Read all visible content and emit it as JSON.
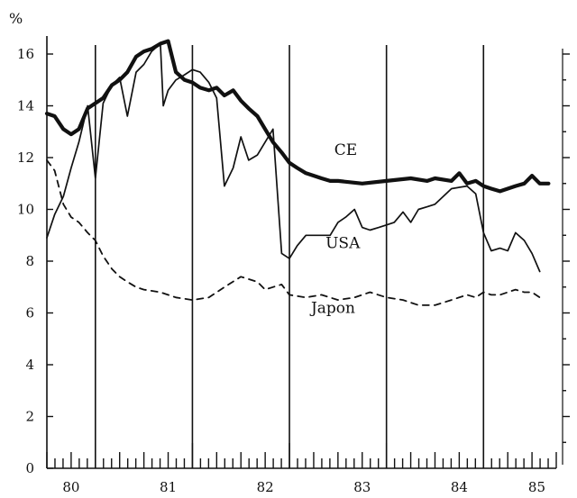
{
  "chart_data": {
    "type": "line",
    "y_unit": "%",
    "ylim": [
      0,
      16
    ],
    "xlim": [
      1980.0,
      1985.25
    ],
    "y_ticks": [
      0,
      2,
      4,
      6,
      8,
      10,
      12,
      14,
      16
    ],
    "x_tick_labels": [
      {
        "label": "80",
        "year": 1980.25
      },
      {
        "label": "81",
        "year": 1981.25
      },
      {
        "label": "82",
        "year": 1982.25
      },
      {
        "label": "83",
        "year": 1983.25
      },
      {
        "label": "84",
        "year": 1984.25
      },
      {
        "label": "85",
        "year": 1985.05
      }
    ],
    "year_dividers": [
      1980.5,
      1981.5,
      1982.5,
      1983.5,
      1984.5
    ],
    "grid": false,
    "series": [
      {
        "name": "CE",
        "style": "thick-solid",
        "label_at": [
          1983.08,
          12.1
        ],
        "points": [
          [
            1980.0,
            13.7
          ],
          [
            1980.08,
            13.6
          ],
          [
            1980.17,
            13.1
          ],
          [
            1980.25,
            12.9
          ],
          [
            1980.33,
            13.1
          ],
          [
            1980.42,
            13.9
          ],
          [
            1980.5,
            14.1
          ],
          [
            1980.58,
            14.3
          ],
          [
            1980.67,
            14.8
          ],
          [
            1980.75,
            15.0
          ],
          [
            1980.83,
            15.3
          ],
          [
            1980.92,
            15.9
          ],
          [
            1981.0,
            16.1
          ],
          [
            1981.08,
            16.2
          ],
          [
            1981.17,
            16.4
          ],
          [
            1981.25,
            16.5
          ],
          [
            1981.33,
            15.3
          ],
          [
            1981.42,
            15.0
          ],
          [
            1981.5,
            14.9
          ],
          [
            1981.58,
            14.7
          ],
          [
            1981.67,
            14.6
          ],
          [
            1981.75,
            14.7
          ],
          [
            1981.83,
            14.4
          ],
          [
            1981.92,
            14.6
          ],
          [
            1982.0,
            14.2
          ],
          [
            1982.08,
            13.9
          ],
          [
            1982.17,
            13.6
          ],
          [
            1982.25,
            13.1
          ],
          [
            1982.33,
            12.6
          ],
          [
            1982.42,
            12.2
          ],
          [
            1982.5,
            11.8
          ],
          [
            1982.58,
            11.6
          ],
          [
            1982.67,
            11.4
          ],
          [
            1982.75,
            11.3
          ],
          [
            1982.83,
            11.2
          ],
          [
            1982.92,
            11.1
          ],
          [
            1983.0,
            11.1
          ],
          [
            1983.25,
            11.0
          ],
          [
            1983.5,
            11.1
          ],
          [
            1983.75,
            11.2
          ],
          [
            1983.92,
            11.1
          ],
          [
            1984.0,
            11.2
          ],
          [
            1984.17,
            11.1
          ],
          [
            1984.25,
            11.4
          ],
          [
            1984.33,
            11.0
          ],
          [
            1984.42,
            11.1
          ],
          [
            1984.5,
            10.9
          ],
          [
            1984.58,
            10.8
          ],
          [
            1984.67,
            10.7
          ],
          [
            1984.75,
            10.8
          ],
          [
            1984.83,
            10.9
          ],
          [
            1984.92,
            11.0
          ],
          [
            1985.0,
            11.3
          ],
          [
            1985.08,
            11.0
          ],
          [
            1985.17,
            11.0
          ]
        ]
      },
      {
        "name": "USA",
        "style": "thin-solid",
        "label_at": [
          1983.05,
          8.5
        ],
        "points": [
          [
            1980.0,
            8.9
          ],
          [
            1980.08,
            9.8
          ],
          [
            1980.17,
            10.5
          ],
          [
            1980.25,
            11.6
          ],
          [
            1980.33,
            12.6
          ],
          [
            1980.42,
            14.0
          ],
          [
            1980.5,
            11.2
          ],
          [
            1980.58,
            14.1
          ],
          [
            1980.67,
            14.8
          ],
          [
            1980.75,
            15.1
          ],
          [
            1980.83,
            13.6
          ],
          [
            1980.92,
            15.3
          ],
          [
            1981.0,
            15.6
          ],
          [
            1981.08,
            16.1
          ],
          [
            1981.17,
            16.4
          ],
          [
            1981.2,
            14.0
          ],
          [
            1981.25,
            14.6
          ],
          [
            1981.33,
            15.0
          ],
          [
            1981.42,
            15.2
          ],
          [
            1981.5,
            15.4
          ],
          [
            1981.58,
            15.3
          ],
          [
            1981.67,
            14.9
          ],
          [
            1981.75,
            14.3
          ],
          [
            1981.83,
            10.9
          ],
          [
            1981.92,
            11.6
          ],
          [
            1982.0,
            12.8
          ],
          [
            1982.08,
            11.9
          ],
          [
            1982.17,
            12.1
          ],
          [
            1982.25,
            12.6
          ],
          [
            1982.33,
            13.1
          ],
          [
            1982.42,
            8.3
          ],
          [
            1982.5,
            8.1
          ],
          [
            1982.58,
            8.6
          ],
          [
            1982.67,
            9.0
          ],
          [
            1982.75,
            9.0
          ],
          [
            1982.83,
            9.0
          ],
          [
            1982.92,
            9.0
          ],
          [
            1983.0,
            9.5
          ],
          [
            1983.08,
            9.7
          ],
          [
            1983.17,
            10.0
          ],
          [
            1983.25,
            9.3
          ],
          [
            1983.33,
            9.2
          ],
          [
            1983.42,
            9.3
          ],
          [
            1983.5,
            9.4
          ],
          [
            1983.58,
            9.5
          ],
          [
            1983.67,
            9.9
          ],
          [
            1983.75,
            9.5
          ],
          [
            1983.83,
            10.0
          ],
          [
            1983.92,
            10.1
          ],
          [
            1984.0,
            10.2
          ],
          [
            1984.17,
            10.8
          ],
          [
            1984.33,
            10.9
          ],
          [
            1984.42,
            10.6
          ],
          [
            1984.5,
            9.1
          ],
          [
            1984.58,
            8.4
          ],
          [
            1984.67,
            8.5
          ],
          [
            1984.75,
            8.4
          ],
          [
            1984.83,
            9.1
          ],
          [
            1984.92,
            8.8
          ],
          [
            1985.0,
            8.3
          ],
          [
            1985.08,
            7.6
          ]
        ]
      },
      {
        "name": "Japon",
        "style": "dashed",
        "label_at": [
          1982.95,
          6.0
        ],
        "points": [
          [
            1980.0,
            11.9
          ],
          [
            1980.08,
            11.5
          ],
          [
            1980.17,
            10.2
          ],
          [
            1980.25,
            9.7
          ],
          [
            1980.33,
            9.5
          ],
          [
            1980.42,
            9.1
          ],
          [
            1980.5,
            8.8
          ],
          [
            1980.58,
            8.2
          ],
          [
            1980.67,
            7.7
          ],
          [
            1980.75,
            7.4
          ],
          [
            1980.83,
            7.2
          ],
          [
            1980.92,
            7.0
          ],
          [
            1981.0,
            6.9
          ],
          [
            1981.17,
            6.8
          ],
          [
            1981.33,
            6.6
          ],
          [
            1981.5,
            6.5
          ],
          [
            1981.67,
            6.6
          ],
          [
            1981.83,
            7.0
          ],
          [
            1982.0,
            7.4
          ],
          [
            1982.17,
            7.2
          ],
          [
            1982.25,
            6.9
          ],
          [
            1982.33,
            7.0
          ],
          [
            1982.42,
            7.1
          ],
          [
            1982.5,
            6.7
          ],
          [
            1982.67,
            6.6
          ],
          [
            1982.83,
            6.7
          ],
          [
            1983.0,
            6.5
          ],
          [
            1983.17,
            6.6
          ],
          [
            1983.33,
            6.8
          ],
          [
            1983.5,
            6.6
          ],
          [
            1983.67,
            6.5
          ],
          [
            1983.83,
            6.3
          ],
          [
            1984.0,
            6.3
          ],
          [
            1984.17,
            6.5
          ],
          [
            1984.33,
            6.7
          ],
          [
            1984.42,
            6.6
          ],
          [
            1984.5,
            6.8
          ],
          [
            1984.58,
            6.7
          ],
          [
            1984.67,
            6.7
          ],
          [
            1984.75,
            6.8
          ],
          [
            1984.83,
            6.9
          ],
          [
            1984.92,
            6.8
          ],
          [
            1985.0,
            6.8
          ],
          [
            1985.08,
            6.6
          ]
        ]
      }
    ]
  }
}
